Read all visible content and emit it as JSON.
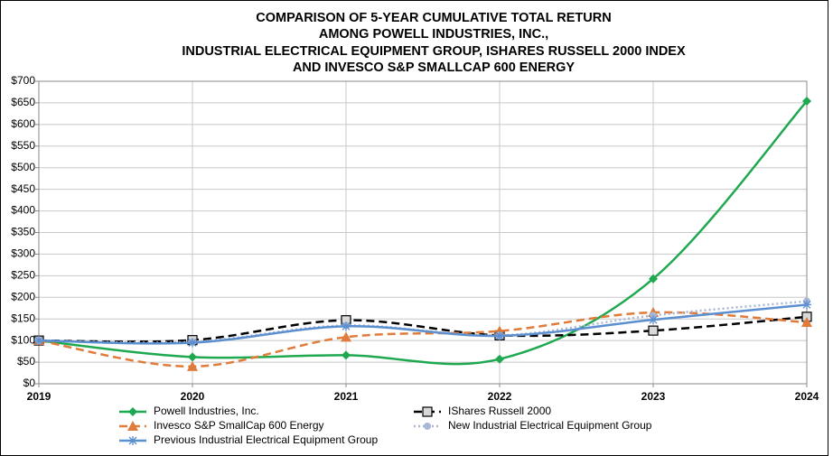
{
  "chart_data": {
    "type": "line",
    "title": [
      "COMPARISON OF 5-YEAR CUMULATIVE TOTAL RETURN",
      "AMONG POWELL INDUSTRIES, INC.,",
      "INDUSTRIAL ELECTRICAL EQUIPMENT GROUP, ISHARES RUSSELL 2000 INDEX",
      "AND INVESCO S&P SMALLCAP 600 ENERGY"
    ],
    "x": [
      2019,
      2020,
      2021,
      2022,
      2023,
      2024
    ],
    "xlim": [
      2019,
      2024
    ],
    "xticks": [
      2019,
      2020,
      2021,
      2022,
      2023,
      2024
    ],
    "ylim": [
      0,
      700
    ],
    "yticks": [
      {
        "value": 0,
        "label": "$0"
      },
      {
        "value": 50,
        "label": "$50"
      },
      {
        "value": 100,
        "label": "$100"
      },
      {
        "value": 150,
        "label": "$150"
      },
      {
        "value": 200,
        "label": "$200"
      },
      {
        "value": 250,
        "label": "$250"
      },
      {
        "value": 300,
        "label": "$300"
      },
      {
        "value": 350,
        "label": "$350"
      },
      {
        "value": 400,
        "label": "$400"
      },
      {
        "value": 450,
        "label": "$450"
      },
      {
        "value": 500,
        "label": "$500"
      },
      {
        "value": 550,
        "label": "$550"
      },
      {
        "value": 600,
        "label": "$600"
      },
      {
        "value": 650,
        "label": "$650"
      },
      {
        "value": 700,
        "label": "$700"
      }
    ],
    "grid": true,
    "smooth": true,
    "series": [
      {
        "name": "Powell Industries, Inc.",
        "color": "#1ea84f",
        "line_style": "solid",
        "marker": "diamond",
        "values": [
          100,
          62,
          66,
          57,
          243,
          654
        ]
      },
      {
        "name": "IShares Russell 2000",
        "color": "#000000",
        "line_style": "dashed",
        "marker": "square",
        "values": [
          100,
          101,
          147,
          112,
          123,
          155
        ]
      },
      {
        "name": "Invesco S&P SmallCap 600 Energy",
        "color": "#e07b39",
        "line_style": "dashed",
        "marker": "triangle",
        "values": [
          100,
          40,
          108,
          122,
          165,
          142
        ]
      },
      {
        "name": "New Industrial Electrical Equipment Group",
        "color": "#a9b6d6",
        "line_style": "dotted",
        "marker": "circle",
        "values": [
          100,
          97,
          135,
          112,
          158,
          191
        ]
      },
      {
        "name": "Previous Industrial Electrical Equipment Group",
        "color": "#5b8fd0",
        "line_style": "solid",
        "marker": "asterisk",
        "values": [
          100,
          95,
          133,
          111,
          148,
          183
        ]
      }
    ]
  }
}
